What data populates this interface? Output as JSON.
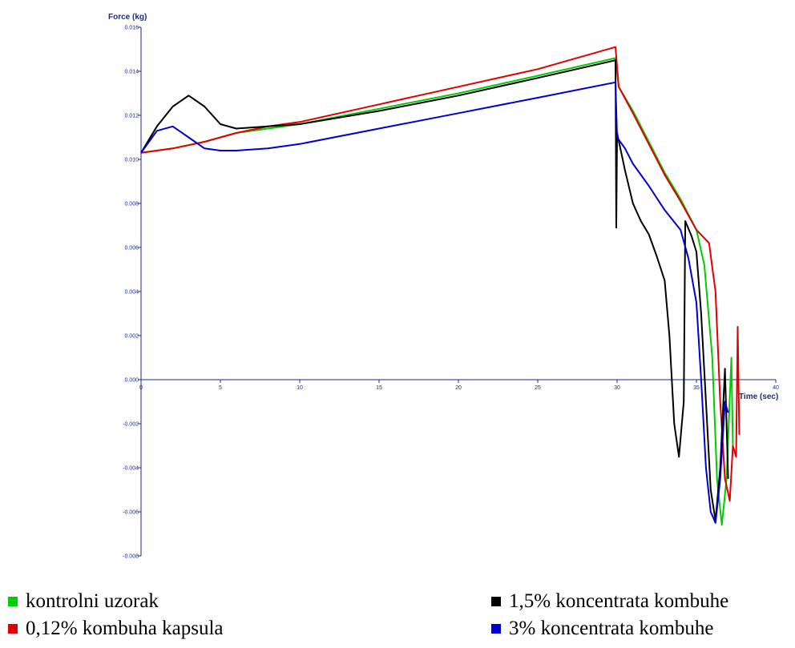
{
  "chart_data": {
    "type": "line",
    "ylabel": "Force (kg)",
    "xlabel": "Time (sec)",
    "xlim": [
      0,
      40
    ],
    "ylim": [
      -0.008,
      0.016
    ],
    "x_ticks": [
      "0",
      "5",
      "10",
      "15",
      "20",
      "25",
      "30",
      "35",
      "40"
    ],
    "y_ticks": [
      "0.016",
      "0.014",
      "0.012",
      "0.010",
      "0.008",
      "0.006",
      "0.004",
      "0.002",
      "0.000",
      "-0.002",
      "-0.004",
      "-0.006",
      "-0.008"
    ],
    "grid": false,
    "legend_position": "bottom",
    "series": [
      {
        "name": "kontrolni uzorak",
        "color": "#00cc00",
        "points": [
          [
            0,
            0.0103
          ],
          [
            2,
            0.0105
          ],
          [
            4,
            0.0108
          ],
          [
            6,
            0.0112
          ],
          [
            8,
            0.0114
          ],
          [
            10,
            0.0116
          ],
          [
            15,
            0.0123
          ],
          [
            20,
            0.013
          ],
          [
            25,
            0.0138
          ],
          [
            29.9,
            0.0146
          ],
          [
            30.1,
            0.0133
          ],
          [
            31,
            0.0122
          ],
          [
            32,
            0.0108
          ],
          [
            33,
            0.0094
          ],
          [
            34,
            0.0082
          ],
          [
            35,
            0.0068
          ],
          [
            35.5,
            0.0052
          ],
          [
            36,
            0.001
          ],
          [
            36.3,
            -0.0045
          ],
          [
            36.6,
            -0.0066
          ],
          [
            36.9,
            -0.0045
          ],
          [
            37.2,
            0.001
          ],
          [
            37.3,
            -0.003
          ]
        ]
      },
      {
        "name": "0,12% kombuha kapsula",
        "color": "#e00000",
        "points": [
          [
            0,
            0.0103
          ],
          [
            2,
            0.0105
          ],
          [
            4,
            0.0108
          ],
          [
            6,
            0.0112
          ],
          [
            8,
            0.0115
          ],
          [
            10,
            0.0117
          ],
          [
            15,
            0.0125
          ],
          [
            20,
            0.0133
          ],
          [
            25,
            0.0141
          ],
          [
            29.9,
            0.0151
          ],
          [
            30.1,
            0.0133
          ],
          [
            31,
            0.0121
          ],
          [
            32,
            0.0107
          ],
          [
            33,
            0.0093
          ],
          [
            34,
            0.0081
          ],
          [
            35,
            0.0068
          ],
          [
            35.8,
            0.0062
          ],
          [
            36.2,
            0.004
          ],
          [
            36.5,
            -0.001
          ],
          [
            36.8,
            -0.0045
          ],
          [
            37.1,
            -0.0055
          ],
          [
            37.3,
            -0.003
          ],
          [
            37.5,
            -0.0035
          ],
          [
            37.6,
            0.0024
          ],
          [
            37.7,
            -0.0025
          ]
        ]
      },
      {
        "name": "1,5% koncentrata kombuhe",
        "color": "#000000",
        "points": [
          [
            0,
            0.0103
          ],
          [
            1,
            0.0115
          ],
          [
            2,
            0.0124
          ],
          [
            3,
            0.0129
          ],
          [
            4,
            0.0124
          ],
          [
            5,
            0.0116
          ],
          [
            6,
            0.0114
          ],
          [
            8,
            0.0115
          ],
          [
            10,
            0.0116
          ],
          [
            15,
            0.0122
          ],
          [
            20,
            0.0129
          ],
          [
            25,
            0.0137
          ],
          [
            29.9,
            0.0145
          ],
          [
            29.95,
            0.0069
          ],
          [
            30,
            0.0112
          ],
          [
            30.5,
            0.0095
          ],
          [
            31,
            0.008
          ],
          [
            31.5,
            0.0072
          ],
          [
            32,
            0.0066
          ],
          [
            32.5,
            0.0056
          ],
          [
            33,
            0.0045
          ],
          [
            33.3,
            0.002
          ],
          [
            33.6,
            -0.002
          ],
          [
            33.9,
            -0.0035
          ],
          [
            34.2,
            -0.001
          ],
          [
            34.3,
            0.0072
          ],
          [
            34.7,
            0.0065
          ],
          [
            35,
            0.0058
          ],
          [
            35.3,
            0.003
          ],
          [
            35.6,
            -0.001
          ],
          [
            35.9,
            -0.005
          ],
          [
            36.2,
            -0.0064
          ],
          [
            36.5,
            -0.004
          ],
          [
            36.8,
            0.0005
          ],
          [
            37,
            -0.0045
          ]
        ]
      },
      {
        "name": "3% koncentrata kombuhe",
        "color": "#0000d0",
        "points": [
          [
            0,
            0.0103
          ],
          [
            1,
            0.0113
          ],
          [
            2,
            0.0115
          ],
          [
            3,
            0.011
          ],
          [
            4,
            0.0105
          ],
          [
            5,
            0.0104
          ],
          [
            6,
            0.0104
          ],
          [
            8,
            0.0105
          ],
          [
            10,
            0.0107
          ],
          [
            15,
            0.0114
          ],
          [
            20,
            0.0121
          ],
          [
            25,
            0.0128
          ],
          [
            29.9,
            0.0135
          ],
          [
            30,
            0.011
          ],
          [
            30.5,
            0.0105
          ],
          [
            31,
            0.0098
          ],
          [
            32,
            0.0088
          ],
          [
            33,
            0.0077
          ],
          [
            34,
            0.0068
          ],
          [
            34.5,
            0.0055
          ],
          [
            35,
            0.0035
          ],
          [
            35.3,
            0.0
          ],
          [
            35.6,
            -0.004
          ],
          [
            35.9,
            -0.006
          ],
          [
            36.2,
            -0.0065
          ],
          [
            36.5,
            -0.0045
          ],
          [
            36.8,
            -0.001
          ],
          [
            37,
            -0.0015
          ]
        ]
      }
    ]
  },
  "legend": [
    {
      "label": "kontrolni uzorak",
      "color": "#00cc00"
    },
    {
      "label": "0,12% kombuha kapsula",
      "color": "#e00000"
    },
    {
      "label": "1,5% koncentrata kombuhe",
      "color": "#000000"
    },
    {
      "label": "3% koncentrata kombuhe",
      "color": "#0000d0"
    }
  ]
}
